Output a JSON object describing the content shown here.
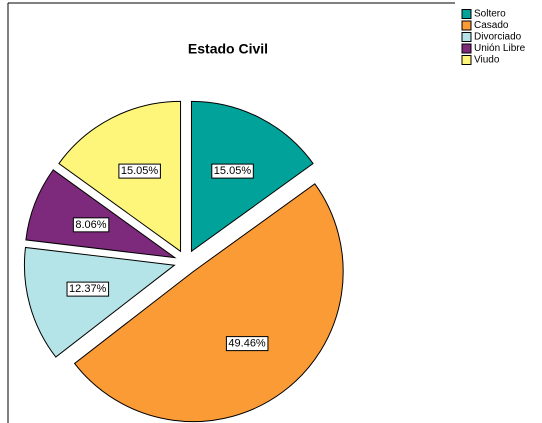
{
  "chart_data": {
    "type": "pie",
    "title": "Estado Civil",
    "categories": [
      "Soltero",
      "Casado",
      "Divorciado",
      "Unión Libre",
      "Viudo"
    ],
    "values": [
      15.05,
      49.46,
      12.37,
      8.06,
      15.05
    ],
    "value_labels": [
      "15.05%",
      "49.46%",
      "12.37%",
      "8.06%",
      "15.05%"
    ],
    "colors": [
      "#00a29a",
      "#fa9b35",
      "#b4e4e7",
      "#7d2a7c",
      "#fdf67a"
    ],
    "legend": "top-right"
  }
}
